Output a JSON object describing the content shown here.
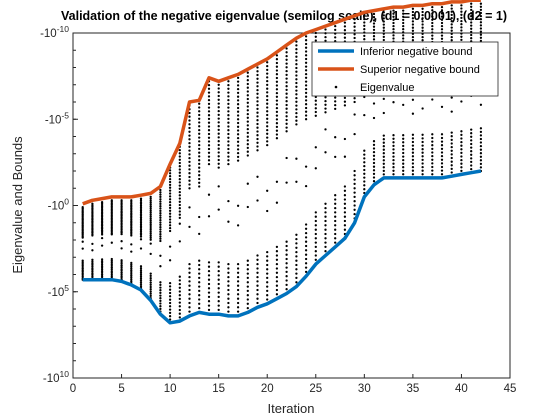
{
  "chart_data": {
    "type": "line",
    "title": "Validation of the negative eigenvalue (semilog scale), (d1 = 0.0001), (d2 = 1)",
    "xlabel": "Iteration",
    "ylabel": "Eigenvalue and Bounds",
    "xlim": [
      0,
      45
    ],
    "xticks": [
      0,
      5,
      10,
      15,
      20,
      25,
      30,
      35,
      40,
      45
    ],
    "y_scale": "log-negative",
    "ylim": [
      -1e-10,
      -10000000000.0
    ],
    "ytick_labels": [
      {
        "base": "-10",
        "exp": "-10",
        "value": -1e-10
      },
      {
        "base": "-10",
        "exp": "-5",
        "value": -1e-05
      },
      {
        "base": "-10",
        "exp": "0",
        "value": -1
      },
      {
        "base": "-10",
        "exp": "5",
        "value": -100000
      },
      {
        "base": "-10",
        "exp": "10",
        "value": -10000000000
      }
    ],
    "grid": false,
    "legend_position": "top-right",
    "series": [
      {
        "name": "Inferior negative bound",
        "style": "line",
        "color": "#0072BD",
        "x": [
          1,
          2,
          3,
          4,
          5,
          6,
          7,
          8,
          9,
          10,
          11,
          12,
          13,
          14,
          15,
          16,
          17,
          18,
          19,
          20,
          21,
          22,
          23,
          24,
          25,
          26,
          27,
          28,
          29,
          30,
          31,
          32,
          33,
          34,
          35,
          36,
          37,
          38,
          39,
          40,
          41,
          42
        ],
        "exp": [
          4.3,
          4.3,
          4.3,
          4.3,
          4.4,
          4.6,
          4.9,
          5.5,
          6.3,
          6.8,
          6.7,
          6.4,
          6.2,
          6.3,
          6.3,
          6.4,
          6.4,
          6.2,
          5.9,
          5.7,
          5.4,
          5.1,
          4.7,
          4.1,
          3.4,
          2.9,
          2.4,
          1.9,
          1.0,
          -0.5,
          -1.2,
          -1.6,
          -1.6,
          -1.6,
          -1.6,
          -1.6,
          -1.6,
          -1.6,
          -1.7,
          -1.8,
          -1.9,
          -2.0
        ]
      },
      {
        "name": "Superior negative bound",
        "style": "line",
        "color": "#D95319",
        "x": [
          1,
          2,
          3,
          4,
          5,
          6,
          7,
          8,
          9,
          10,
          11,
          12,
          13,
          14,
          15,
          16,
          17,
          18,
          19,
          20,
          21,
          22,
          23,
          24,
          25,
          26,
          27,
          28,
          29,
          30,
          31,
          32,
          33,
          34,
          35,
          36,
          37,
          38,
          39,
          40,
          41,
          42
        ],
        "exp": [
          -0.1,
          -0.3,
          -0.4,
          -0.5,
          -0.5,
          -0.5,
          -0.6,
          -0.7,
          -1.1,
          -2.4,
          -3.6,
          -6.0,
          -6.1,
          -7.4,
          -7.2,
          -7.4,
          -7.6,
          -7.9,
          -8.2,
          -8.5,
          -8.9,
          -9.3,
          -9.7,
          -10.0,
          -10.2,
          -10.4,
          -10.6,
          -10.8,
          -11.0,
          -11.2,
          -11.3,
          -11.4,
          -11.5,
          -11.5,
          -11.6,
          -11.6,
          -11.7,
          -11.7,
          -11.8,
          -11.8,
          -11.9,
          -11.9
        ]
      },
      {
        "name": "Eigenvalue",
        "style": "dots",
        "color": "#000000",
        "note": "Eigenvalue dots: per iteration, a dense column spans from the superior bound to roughly 0.2 decades above it in the upper cluster, plus a lower cluster just above the inferior bound, with scattered isolated points between (about 48 eigenvalues per iteration)."
      }
    ]
  }
}
